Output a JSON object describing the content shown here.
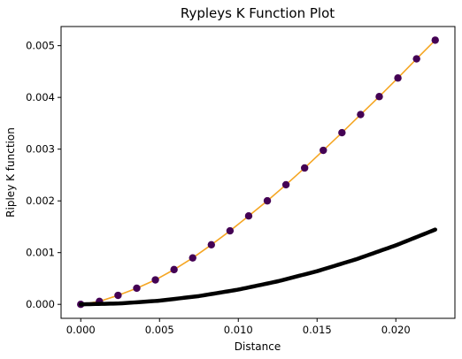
{
  "chart_data": {
    "type": "line",
    "title": "Rypleys K Function Plot",
    "xlabel": "Distance",
    "ylabel": "Ripley K function",
    "xlim": [
      -0.00125,
      0.02375
    ],
    "ylim": [
      -0.00027,
      0.00537
    ],
    "xticks": [
      "0.000",
      "0.005",
      "0.010",
      "0.015",
      "0.020"
    ],
    "xtick_values": [
      0.0,
      0.005,
      0.01,
      0.015,
      0.02
    ],
    "yticks": [
      "0.000",
      "0.001",
      "0.002",
      "0.003",
      "0.004",
      "0.005"
    ],
    "ytick_values": [
      0.0,
      0.001,
      0.002,
      0.003,
      0.004,
      0.005
    ],
    "grid": false,
    "series": [
      {
        "style": "line+markers",
        "line_color": "#f5a623",
        "marker_color": "#440154",
        "x": [
          0.0,
          0.001184,
          0.002368,
          0.003553,
          0.004737,
          0.005921,
          0.007105,
          0.008289,
          0.009474,
          0.010658,
          0.011842,
          0.013026,
          0.01421,
          0.015395,
          0.016579,
          0.017763,
          0.018947,
          0.020131,
          0.021316,
          0.0225
        ],
        "y": [
          0.0,
          5.7e-05,
          0.000174,
          0.000312,
          0.000473,
          0.000672,
          0.000898,
          0.001152,
          0.001421,
          0.001709,
          0.002001,
          0.002312,
          0.002636,
          0.002977,
          0.003318,
          0.003668,
          0.004016,
          0.004375,
          0.004745,
          0.005107
        ]
      },
      {
        "style": "thick-line",
        "line_color": "#000000",
        "x": [
          0.0,
          0.0025,
          0.005,
          0.0075,
          0.01,
          0.0125,
          0.015,
          0.0175,
          0.02,
          0.0225
        ],
        "y": [
          0.0,
          1.8e-05,
          7.1e-05,
          0.00016,
          0.000285,
          0.000445,
          0.000641,
          0.000873,
          0.001141,
          0.001445
        ]
      }
    ]
  }
}
